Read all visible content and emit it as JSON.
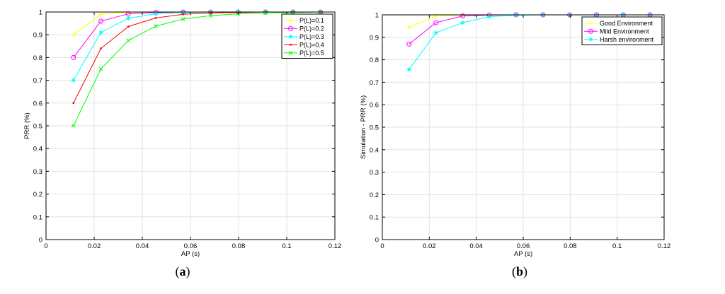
{
  "chart_data": [
    {
      "type": "line",
      "caption": {
        "open": "(",
        "letter": "a",
        "close": ")"
      },
      "xlabel": "AP (s)",
      "ylabel": "PRR (%)",
      "xlim": [
        0,
        0.12
      ],
      "ylim": [
        0,
        1
      ],
      "xticks": [
        0,
        0.02,
        0.04,
        0.06,
        0.08,
        0.1,
        0.12
      ],
      "xticklabels": [
        "0",
        "0.02",
        "0.04",
        "0.06",
        "0.08",
        "0.1",
        "0.12"
      ],
      "yticks": [
        0,
        0.1,
        0.2,
        0.3,
        0.4,
        0.5,
        0.6,
        0.7,
        0.8,
        0.9,
        1
      ],
      "yticklabels": [
        "0",
        "0.1",
        "0.2",
        "0.3",
        "0.4",
        "0.5",
        "0.6",
        "0.7",
        "0.8",
        "0.9",
        "1"
      ],
      "grid": true,
      "legend_position": "top-right",
      "x": [
        0.0114,
        0.0228,
        0.0342,
        0.0456,
        0.057,
        0.0684,
        0.0798,
        0.0912,
        0.1026,
        0.114
      ],
      "series": [
        {
          "name": "P(L)=0.1",
          "color": "#ffff00",
          "marker": "plus",
          "values": [
            0.9,
            0.99,
            0.999,
            1,
            1,
            1,
            1,
            1,
            1,
            1
          ]
        },
        {
          "name": "P(L)=0.2",
          "color": "#ff00ff",
          "marker": "circle",
          "values": [
            0.8,
            0.96,
            0.992,
            0.998,
            1,
            1,
            1,
            1,
            1,
            1
          ]
        },
        {
          "name": "P(L)=0.3",
          "color": "#00ffff",
          "marker": "star",
          "values": [
            0.7,
            0.91,
            0.973,
            0.992,
            0.998,
            1,
            1,
            1,
            1,
            1
          ]
        },
        {
          "name": "P(L)=0.4",
          "color": "#ff0000",
          "marker": "dot",
          "values": [
            0.6,
            0.84,
            0.936,
            0.974,
            0.99,
            0.996,
            0.998,
            1,
            1,
            1
          ]
        },
        {
          "name": "P(L)=0.5",
          "color": "#00ff00",
          "marker": "x",
          "values": [
            0.5,
            0.75,
            0.875,
            0.938,
            0.969,
            0.984,
            0.992,
            0.996,
            0.998,
            1
          ]
        }
      ]
    },
    {
      "type": "line",
      "caption": {
        "open": "(",
        "letter": "b",
        "close": ")"
      },
      "xlabel": "AP (s)",
      "ylabel": "Simulation - PRR (%)",
      "xlim": [
        0,
        0.12
      ],
      "ylim": [
        0,
        1
      ],
      "xticks": [
        0,
        0.02,
        0.04,
        0.06,
        0.08,
        0.1,
        0.12
      ],
      "xticklabels": [
        "0",
        "0.02",
        "0.04",
        "0.06",
        "0.08",
        "0.1",
        "0.12"
      ],
      "yticks": [
        0,
        0.1,
        0.2,
        0.3,
        0.4,
        0.5,
        0.6,
        0.7,
        0.8,
        0.9,
        1
      ],
      "yticklabels": [
        "0",
        "0.1",
        "0.2",
        "0.3",
        "0.4",
        "0.5",
        "0.6",
        "0.7",
        "0.8",
        "0.9",
        "1"
      ],
      "grid": true,
      "legend_position": "top-right",
      "x": [
        0.0114,
        0.0228,
        0.0342,
        0.0456,
        0.057,
        0.0684,
        0.0798,
        0.0912,
        0.1026,
        0.114
      ],
      "series": [
        {
          "name": "Good Environment",
          "color": "#ffff00",
          "marker": "plus",
          "values": [
            0.945,
            0.995,
            0.999,
            1,
            1,
            1,
            1,
            1,
            1,
            1
          ]
        },
        {
          "name": "Mild Environment",
          "color": "#ff00ff",
          "marker": "circle",
          "values": [
            0.87,
            0.965,
            0.995,
            0.999,
            1,
            1,
            1,
            1,
            1,
            1
          ]
        },
        {
          "name": "Harsh environment",
          "color": "#00ffff",
          "marker": "star",
          "values": [
            0.757,
            0.92,
            0.965,
            0.992,
            0.998,
            1,
            1,
            1,
            1,
            1
          ]
        }
      ]
    }
  ]
}
